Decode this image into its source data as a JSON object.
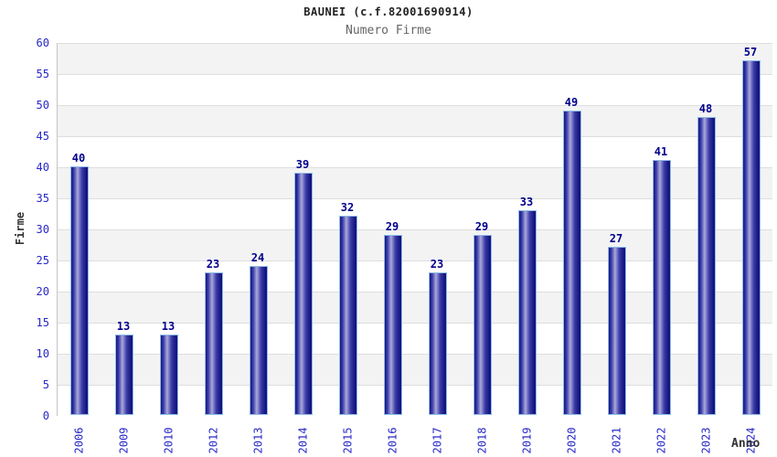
{
  "header": {
    "title": "BAUNEI (c.f.82001690914)",
    "subtitle": "Numero Firme"
  },
  "chart_data": {
    "type": "bar",
    "title": "BAUNEI (c.f.82001690914)",
    "subtitle": "Numero Firme",
    "categories": [
      "2006",
      "2009",
      "2010",
      "2012",
      "2013",
      "2014",
      "2015",
      "2016",
      "2017",
      "2018",
      "2019",
      "2020",
      "2021",
      "2022",
      "2023",
      "2024"
    ],
    "values": [
      40,
      13,
      13,
      23,
      24,
      39,
      32,
      29,
      23,
      29,
      33,
      49,
      27,
      41,
      48,
      57
    ],
    "xlabel": "Anno",
    "ylabel": "Firme",
    "ylim": [
      0,
      60
    ],
    "ytick_step": 5,
    "ytick_labels": [
      "0",
      "5",
      "10",
      "15",
      "20",
      "25",
      "30",
      "35",
      "40",
      "45",
      "50",
      "55",
      "60"
    ],
    "grid": "horizontal gridlines with alternating gray/white bands",
    "legend": "none",
    "bar_value_labels_shown": true,
    "colors": {
      "bar_dark": "#16167f",
      "bar_mid": "#3c3caa",
      "bar_highlight": "#a9a9da",
      "bar_border": "#8fbbe6",
      "tick_label": "#2727c8",
      "value_label": "#00008b",
      "band_gray": "#f3f3f3",
      "band_white": "#ffffff",
      "gridline": "#dedede",
      "axis_line": "#c4c4c4",
      "title_color": "#222222",
      "subtitle_color": "#666666",
      "axis_title_color": "#333333"
    }
  }
}
